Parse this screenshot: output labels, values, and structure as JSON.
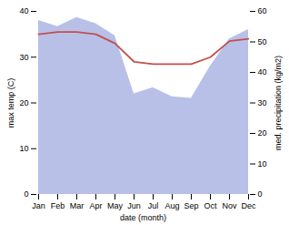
{
  "chart_data": {
    "type": "line",
    "categories": [
      "Jan",
      "Feb",
      "Mar",
      "Apr",
      "May",
      "Jun",
      "Jul",
      "Aug",
      "Sep",
      "Oct",
      "Nov",
      "Dec"
    ],
    "xlabel": "date (month)",
    "ylabel": "max temp (C)",
    "y2label": "med. precipitation (kg/m2)",
    "series": [
      {
        "type": "area",
        "axis": "y2",
        "color": "#b8c0e8",
        "values": [
          57,
          55,
          58,
          56,
          52,
          33,
          35,
          32,
          31.5,
          42,
          51,
          54
        ]
      },
      {
        "type": "line",
        "color": "#c0504d",
        "values": [
          35,
          35.5,
          35.5,
          35,
          33,
          29,
          28.5,
          28.5,
          28.5,
          30,
          33.5,
          34
        ]
      }
    ],
    "ylim": [
      0,
      40
    ],
    "yticks": [
      0,
      10,
      20,
      30,
      40
    ],
    "y2lim": [
      0,
      60
    ],
    "y2ticks": [
      0,
      10,
      20,
      30,
      40,
      50,
      60
    ],
    "grid": false
  }
}
